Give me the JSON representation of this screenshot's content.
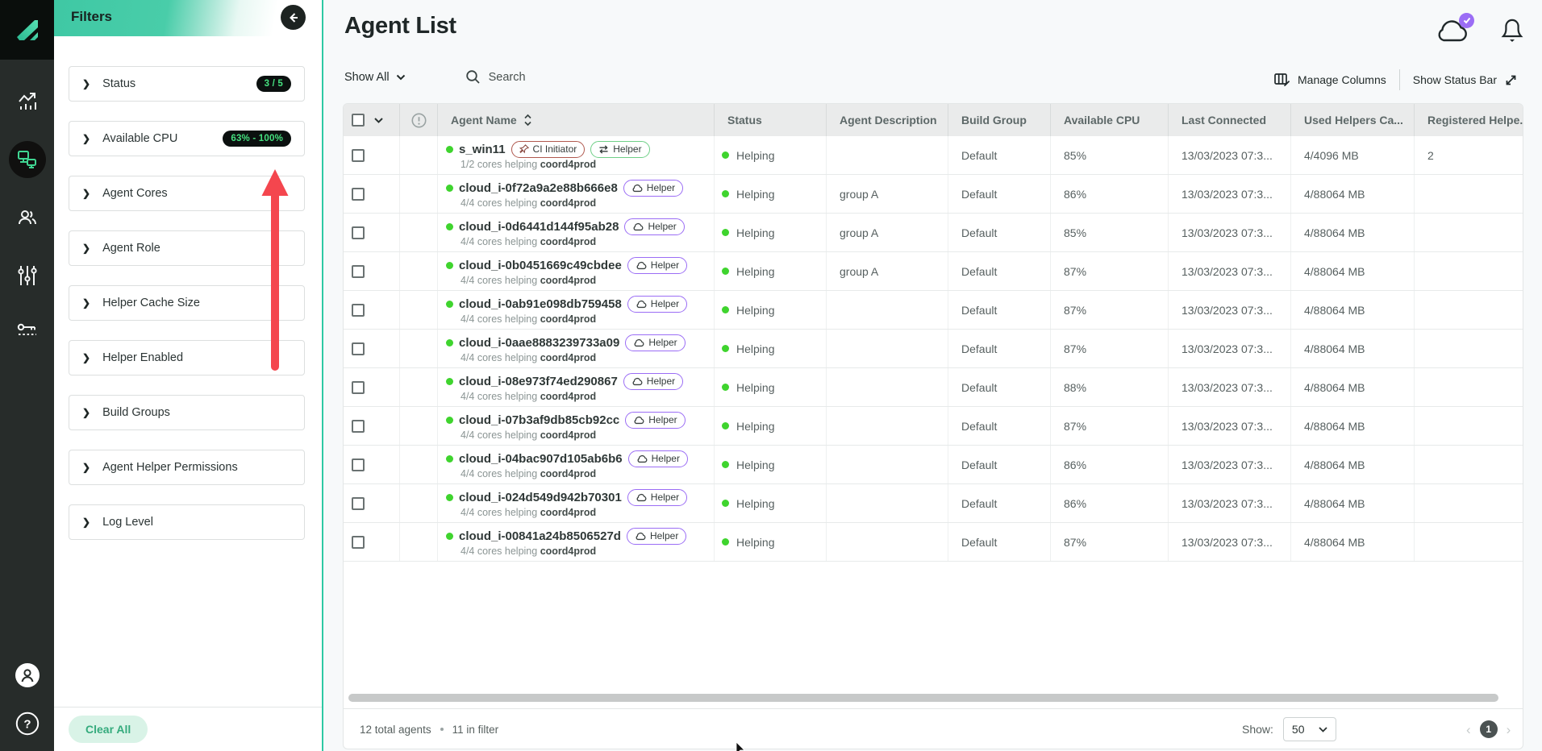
{
  "colors": {
    "teal_accent": "#2ec9a4",
    "status_green": "#3fd42e",
    "badge_green_text": "#45e07f",
    "purple_accent": "#9b6df5",
    "red_arrow": "#f4464e"
  },
  "sidebar": {
    "items": [
      {
        "icon": "analytics-icon",
        "active": false
      },
      {
        "icon": "agents-icon",
        "active": true
      },
      {
        "icon": "users-icon",
        "active": false
      },
      {
        "icon": "sliders-icon",
        "active": false
      },
      {
        "icon": "license-key-icon",
        "active": false
      }
    ],
    "bottom_items": [
      {
        "icon": "account-icon"
      },
      {
        "icon": "help-icon"
      }
    ]
  },
  "filters": {
    "title": "Filters",
    "clear_all_label": "Clear All",
    "sections": [
      {
        "label": "Status",
        "badge": "3 / 5"
      },
      {
        "label": "Available CPU",
        "badge": "63% - 100%"
      },
      {
        "label": "Agent Cores",
        "badge": ""
      },
      {
        "label": "Agent Role",
        "badge": ""
      },
      {
        "label": "Helper Cache Size",
        "badge": ""
      },
      {
        "label": "Helper Enabled",
        "badge": ""
      },
      {
        "label": "Build Groups",
        "badge": ""
      },
      {
        "label": "Agent Helper Permissions",
        "badge": ""
      },
      {
        "label": "Log Level",
        "badge": ""
      }
    ]
  },
  "header": {
    "title": "Agent List"
  },
  "toolbar": {
    "show_all_label": "Show All",
    "search_placeholder": "Search",
    "manage_columns_label": "Manage Columns",
    "show_status_bar_label": "Show Status Bar"
  },
  "table": {
    "columns": [
      "Agent Name",
      "Status",
      "Agent Description",
      "Build Group",
      "Available CPU",
      "Last Connected",
      "Used Helpers Ca...",
      "Registered Helpe.."
    ],
    "badge_labels": {
      "ci_initiator": "CI Initiator",
      "helper": "Helper"
    },
    "rows": [
      {
        "name": "s_win11",
        "badges": [
          "ci_initiator",
          "helper_sync"
        ],
        "cores_text": "1/2 cores helping",
        "coordinator": "coord4prod",
        "status": "Helping",
        "description": "",
        "build_group": "Default",
        "available_cpu": "85%",
        "last_connected": "13/03/2023 07:3...",
        "used_helpers": "4/4096 MB",
        "registered": "2"
      },
      {
        "name": "cloud_i-0f72a9a2e88b666e8",
        "badges": [
          "helper_cloud"
        ],
        "cores_text": "4/4 cores helping",
        "coordinator": "coord4prod",
        "status": "Helping",
        "description": "group A",
        "build_group": "Default",
        "available_cpu": "86%",
        "last_connected": "13/03/2023 07:3...",
        "used_helpers": "4/88064 MB",
        "registered": ""
      },
      {
        "name": "cloud_i-0d6441d144f95ab28",
        "badges": [
          "helper_cloud"
        ],
        "cores_text": "4/4 cores helping",
        "coordinator": "coord4prod",
        "status": "Helping",
        "description": "group A",
        "build_group": "Default",
        "available_cpu": "85%",
        "last_connected": "13/03/2023 07:3...",
        "used_helpers": "4/88064 MB",
        "registered": ""
      },
      {
        "name": "cloud_i-0b0451669c49cbdee",
        "badges": [
          "helper_cloud"
        ],
        "cores_text": "4/4 cores helping",
        "coordinator": "coord4prod",
        "status": "Helping",
        "description": "group A",
        "build_group": "Default",
        "available_cpu": "87%",
        "last_connected": "13/03/2023 07:3...",
        "used_helpers": "4/88064 MB",
        "registered": ""
      },
      {
        "name": "cloud_i-0ab91e098db759458",
        "badges": [
          "helper_cloud"
        ],
        "cores_text": "4/4 cores helping",
        "coordinator": "coord4prod",
        "status": "Helping",
        "description": "",
        "build_group": "Default",
        "available_cpu": "87%",
        "last_connected": "13/03/2023 07:3...",
        "used_helpers": "4/88064 MB",
        "registered": ""
      },
      {
        "name": "cloud_i-0aae8883239733a09",
        "badges": [
          "helper_cloud"
        ],
        "cores_text": "4/4 cores helping",
        "coordinator": "coord4prod",
        "status": "Helping",
        "description": "",
        "build_group": "Default",
        "available_cpu": "87%",
        "last_connected": "13/03/2023 07:3...",
        "used_helpers": "4/88064 MB",
        "registered": ""
      },
      {
        "name": "cloud_i-08e973f74ed290867",
        "badges": [
          "helper_cloud"
        ],
        "cores_text": "4/4 cores helping",
        "coordinator": "coord4prod",
        "status": "Helping",
        "description": "",
        "build_group": "Default",
        "available_cpu": "88%",
        "last_connected": "13/03/2023 07:3...",
        "used_helpers": "4/88064 MB",
        "registered": ""
      },
      {
        "name": "cloud_i-07b3af9db85cb92cc",
        "badges": [
          "helper_cloud"
        ],
        "cores_text": "4/4 cores helping",
        "coordinator": "coord4prod",
        "status": "Helping",
        "description": "",
        "build_group": "Default",
        "available_cpu": "87%",
        "last_connected": "13/03/2023 07:3...",
        "used_helpers": "4/88064 MB",
        "registered": ""
      },
      {
        "name": "cloud_i-04bac907d105ab6b6",
        "badges": [
          "helper_cloud"
        ],
        "cores_text": "4/4 cores helping",
        "coordinator": "coord4prod",
        "status": "Helping",
        "description": "",
        "build_group": "Default",
        "available_cpu": "86%",
        "last_connected": "13/03/2023 07:3...",
        "used_helpers": "4/88064 MB",
        "registered": ""
      },
      {
        "name": "cloud_i-024d549d942b70301",
        "badges": [
          "helper_cloud"
        ],
        "cores_text": "4/4 cores helping",
        "coordinator": "coord4prod",
        "status": "Helping",
        "description": "",
        "build_group": "Default",
        "available_cpu": "86%",
        "last_connected": "13/03/2023 07:3...",
        "used_helpers": "4/88064 MB",
        "registered": ""
      },
      {
        "name": "cloud_i-00841a24b8506527d",
        "badges": [
          "helper_cloud"
        ],
        "cores_text": "4/4 cores helping",
        "coordinator": "coord4prod",
        "status": "Helping",
        "description": "",
        "build_group": "Default",
        "available_cpu": "87%",
        "last_connected": "13/03/2023 07:3...",
        "used_helpers": "4/88064 MB",
        "registered": ""
      }
    ]
  },
  "footer": {
    "total_text": "12 total agents",
    "filter_text": "11 in filter",
    "show_label": "Show:",
    "page_size": "50",
    "current_page": "1"
  }
}
